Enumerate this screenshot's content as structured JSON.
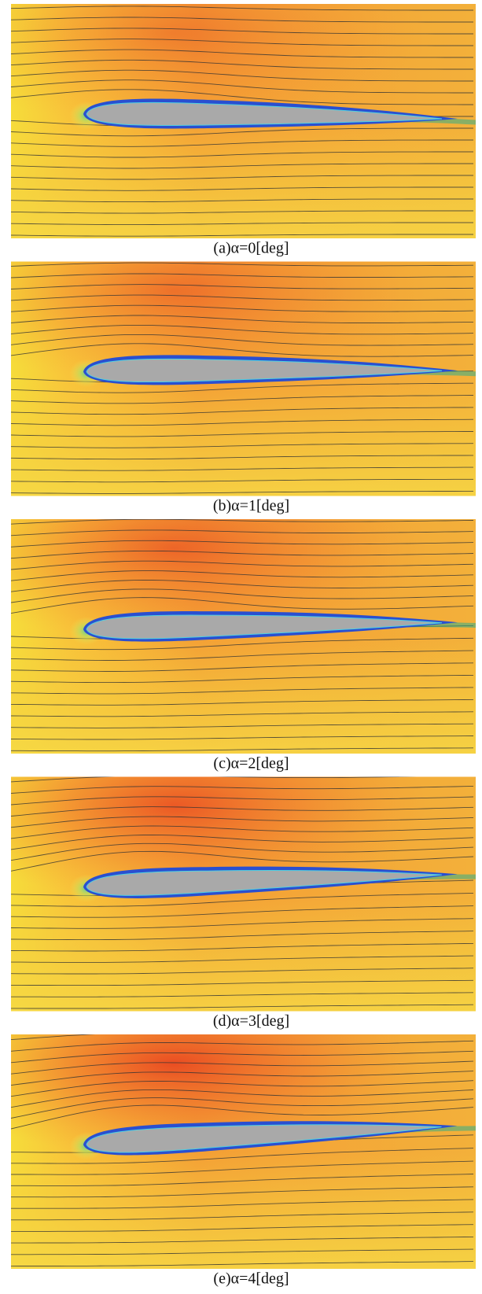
{
  "panels": [
    {
      "caption": "(a)α=0[deg]"
    },
    {
      "caption": "(b)α=1[deg]"
    },
    {
      "caption": "(c)α=2[deg]"
    },
    {
      "caption": "(d)α=3[deg]"
    },
    {
      "caption": "(e)α=4[deg]"
    }
  ]
}
